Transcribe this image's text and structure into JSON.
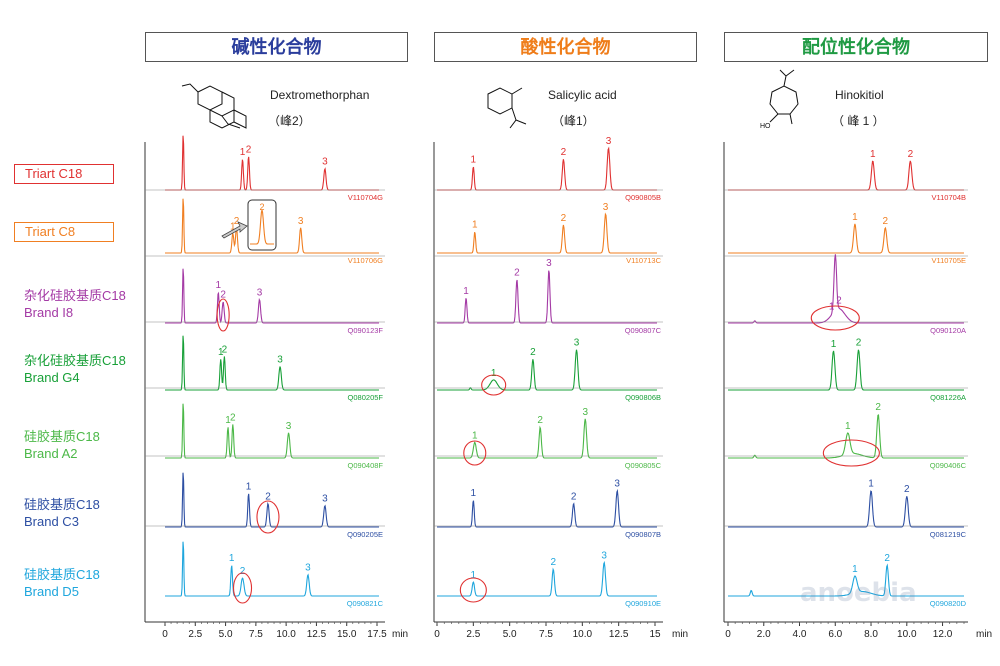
{
  "headers": [
    {
      "label": "碱性化合物",
      "color": "#2a3d9c"
    },
    {
      "label": "酸性化合物",
      "color": "#ef7d1a"
    },
    {
      "label": "配位性化合物",
      "color": "#1f9a43"
    }
  ],
  "compounds": [
    {
      "name": "Dextromethorphan",
      "peak": "（峰2）"
    },
    {
      "name": "Salicylic acid",
      "peak": "（峰1）"
    },
    {
      "name": "Hinokitiol",
      "peak": "（ 峰 1 ）"
    }
  ],
  "structure_labels": {
    "hydroxy": "HO"
  },
  "rows": [
    {
      "line1": "Triart C18",
      "line2": "",
      "boxed": true,
      "color": "#e03131"
    },
    {
      "line1": "Triart C8",
      "line2": "",
      "boxed": true,
      "color": "#f07f22"
    },
    {
      "line1": "杂化硅胶基质C18",
      "line2": "Brand I8",
      "boxed": false,
      "color": "#a43aa5"
    },
    {
      "line1": "杂化硅胶基质C18",
      "line2": "Brand G4",
      "boxed": false,
      "color": "#18a038"
    },
    {
      "line1": "硅胶基质C18",
      "line2": "Brand A2",
      "boxed": false,
      "color": "#4cb848"
    },
    {
      "line1": "硅胶基质C18",
      "line2": "Brand C3",
      "boxed": false,
      "color": "#2d4fa3"
    },
    {
      "line1": "硅胶基质C18",
      "line2": "Brand D5",
      "boxed": false,
      "color": "#1fa6dd"
    }
  ],
  "watermark": "anoebia",
  "chart_data": [
    {
      "type": "line",
      "title": "碱性化合物 – Dextromethorphan",
      "xlabel": "min",
      "xlim": [
        0,
        17.5
      ],
      "ticks": [
        0,
        2.5,
        5,
        7.5,
        10,
        12.5,
        15,
        17.5
      ],
      "tick_labels": [
        "0",
        "2.5",
        "5.0",
        "7.5",
        "10.0",
        "12.5",
        "15.0",
        "17.5"
      ],
      "series": [
        {
          "name": "Triart C18",
          "code": "V110704G",
          "peaks": [
            [
              1.5,
              1,
              0.05
            ],
            [
              6.4,
              0.55,
              0.07,
              "1"
            ],
            [
              6.9,
              0.6,
              0.07,
              "2"
            ],
            [
              13.2,
              0.38,
              0.09,
              "3"
            ]
          ]
        },
        {
          "name": "Triart C8",
          "code": "V110706G",
          "peaks": [
            [
              1.5,
              1,
              0.05
            ],
            [
              5.6,
              0.35,
              0.08,
              "1"
            ],
            [
              5.9,
              0.45,
              0.08,
              "2"
            ],
            [
              11.2,
              0.45,
              0.09,
              "3"
            ]
          ]
        },
        {
          "name": "Brand I8",
          "code": "Q090123F",
          "peaks": [
            [
              1.5,
              1,
              0.05
            ],
            [
              4.4,
              0.55,
              0.07,
              "1"
            ],
            [
              4.8,
              0.38,
              0.08,
              "2"
            ],
            [
              7.8,
              0.42,
              0.09,
              "3"
            ]
          ]
        },
        {
          "name": "Brand G4",
          "code": "Q080205F",
          "peaks": [
            [
              1.5,
              1,
              0.05
            ],
            [
              4.6,
              0.55,
              0.07,
              "1"
            ],
            [
              4.9,
              0.6,
              0.07,
              "2"
            ],
            [
              9.5,
              0.42,
              0.1,
              "3"
            ]
          ]
        },
        {
          "name": "Brand A2",
          "code": "Q090408F",
          "peaks": [
            [
              1.5,
              1,
              0.05
            ],
            [
              5.2,
              0.55,
              0.07,
              "1"
            ],
            [
              5.6,
              0.6,
              0.07,
              "2"
            ],
            [
              10.2,
              0.45,
              0.1,
              "3"
            ]
          ]
        },
        {
          "name": "Brand C3",
          "code": "Q090205E",
          "peaks": [
            [
              1.5,
              1,
              0.05
            ],
            [
              6.9,
              0.6,
              0.07,
              "1"
            ],
            [
              8.5,
              0.42,
              0.09,
              "2"
            ],
            [
              13.2,
              0.38,
              0.1,
              "3"
            ]
          ]
        },
        {
          "name": "Brand D5",
          "code": "Q090821C",
          "peaks": [
            [
              1.5,
              1,
              0.05
            ],
            [
              5.5,
              0.55,
              0.07,
              "1"
            ],
            [
              6.4,
              0.32,
              0.12,
              "2"
            ],
            [
              11.8,
              0.38,
              0.1,
              "3"
            ]
          ]
        }
      ]
    },
    {
      "type": "line",
      "title": "酸性化合物 – Salicylic acid",
      "xlabel": "min",
      "xlim": [
        0,
        15
      ],
      "ticks": [
        0,
        2.5,
        5,
        7.5,
        10,
        12.5,
        15
      ],
      "tick_labels": [
        "0",
        "2.5",
        "5.0",
        "7.5",
        "10.0",
        "12.5",
        "15"
      ],
      "series": [
        {
          "name": "Triart C18",
          "code": "Q090805B",
          "peaks": [
            [
              2.5,
              0.42,
              0.06,
              "1"
            ],
            [
              8.7,
              0.55,
              0.08,
              "2"
            ],
            [
              11.8,
              0.75,
              0.09,
              "3"
            ]
          ]
        },
        {
          "name": "Triart C8",
          "code": "V110713C",
          "peaks": [
            [
              2.6,
              0.38,
              0.06,
              "1"
            ],
            [
              8.7,
              0.5,
              0.08,
              "2"
            ],
            [
              11.6,
              0.7,
              0.09,
              "3"
            ]
          ]
        },
        {
          "name": "Brand I8",
          "code": "Q090807C",
          "peaks": [
            [
              2.0,
              0.45,
              0.06,
              "1"
            ],
            [
              5.5,
              0.78,
              0.07,
              "2"
            ],
            [
              7.7,
              0.95,
              0.07,
              "3"
            ]
          ]
        },
        {
          "name": "Brand G4",
          "code": "Q090806B",
          "peaks": [
            [
              2.3,
              0.04,
              0.05
            ],
            [
              3.9,
              0.18,
              0.25,
              "1"
            ],
            [
              6.6,
              0.55,
              0.08,
              "2"
            ],
            [
              9.6,
              0.72,
              0.09,
              "3"
            ]
          ]
        },
        {
          "name": "Brand A2",
          "code": "Q090805C",
          "peaks": [
            [
              2.6,
              0.28,
              0.1,
              "1"
            ],
            [
              7.1,
              0.55,
              0.08,
              "2"
            ],
            [
              10.2,
              0.7,
              0.09,
              "3"
            ]
          ]
        },
        {
          "name": "Brand C3",
          "code": "Q090807B",
          "peaks": [
            [
              2.5,
              0.48,
              0.06,
              "1"
            ],
            [
              9.4,
              0.42,
              0.08,
              "2"
            ],
            [
              12.4,
              0.65,
              0.09,
              "3"
            ]
          ]
        },
        {
          "name": "Brand D5",
          "code": "Q090910E",
          "peaks": [
            [
              2.5,
              0.25,
              0.08,
              "1"
            ],
            [
              8.0,
              0.48,
              0.08,
              "2"
            ],
            [
              11.5,
              0.6,
              0.09,
              "3"
            ]
          ]
        }
      ]
    },
    {
      "type": "line",
      "title": "配位性化合物 – Hinokitiol",
      "xlabel": "min",
      "xlim": [
        0,
        13.2
      ],
      "ticks": [
        0,
        2,
        4,
        6,
        8,
        10,
        12
      ],
      "tick_labels": [
        "0",
        "2.0",
        "4.0",
        "6.0",
        "8.0",
        "10.0",
        "12.0"
      ],
      "series": [
        {
          "name": "Triart C18",
          "code": "V110704B",
          "peaks": [
            [
              8.1,
              0.52,
              0.08,
              "1"
            ],
            [
              10.2,
              0.52,
              0.08,
              "2"
            ]
          ]
        },
        {
          "name": "Triart C8",
          "code": "V110705E",
          "peaks": [
            [
              7.1,
              0.52,
              0.08,
              "1"
            ],
            [
              8.8,
              0.45,
              0.08,
              "2"
            ]
          ]
        },
        {
          "name": "Brand I8",
          "code": "Q090120A",
          "peaks": [
            [
              1.5,
              0.04,
              0.05
            ],
            [
              5.8,
              0.02,
              0.3,
              "1"
            ],
            [
              6.0,
              1.0,
              0.07
            ],
            [
              6.2,
              0.25,
              0.35,
              "2"
            ]
          ]
        },
        {
          "name": "Brand G4",
          "code": "Q081226A",
          "peaks": [
            [
              5.9,
              0.7,
              0.08,
              "1"
            ],
            [
              7.3,
              0.72,
              0.08,
              "2"
            ]
          ]
        },
        {
          "name": "Brand A2",
          "code": "Q090406C",
          "peaks": [
            [
              1.5,
              0.05,
              0.05
            ],
            [
              6.7,
              0.38,
              0.12,
              "1"
            ],
            [
              7.0,
              0.08,
              0.5
            ],
            [
              8.4,
              0.78,
              0.08,
              "2"
            ]
          ]
        },
        {
          "name": "Brand C3",
          "code": "Q081219C",
          "peaks": [
            [
              8.0,
              0.65,
              0.08,
              "1"
            ],
            [
              10.0,
              0.55,
              0.08,
              "2"
            ]
          ]
        },
        {
          "name": "Brand D5",
          "code": "Q090820D",
          "peaks": [
            [
              1.3,
              0.1,
              0.05
            ],
            [
              7.1,
              0.3,
              0.12,
              "1"
            ],
            [
              7.5,
              0.08,
              0.5
            ],
            [
              8.9,
              0.55,
              0.07,
              "2"
            ]
          ]
        }
      ]
    }
  ]
}
